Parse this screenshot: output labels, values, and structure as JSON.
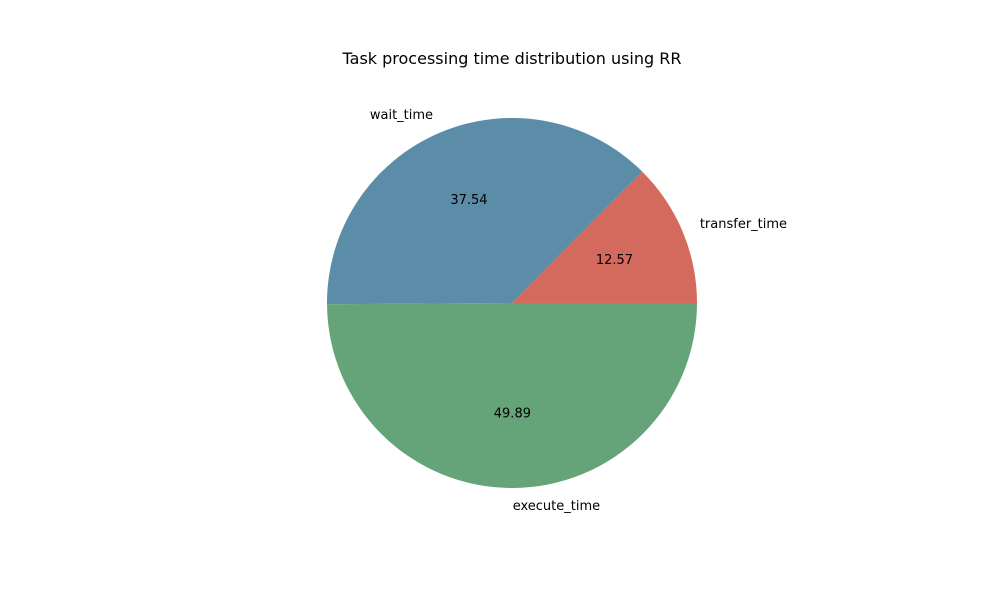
{
  "chart_data": {
    "type": "pie",
    "title": "Task processing time distribution using RR",
    "slices": [
      {
        "label": "transfer_time",
        "value": 12.57,
        "value_label": "12.57",
        "color": "#d4695e"
      },
      {
        "label": "wait_time",
        "value": 37.54,
        "value_label": "37.54",
        "color": "#5b8ca8"
      },
      {
        "label": "execute_time",
        "value": 49.89,
        "value_label": "49.89",
        "color": "#64a478"
      }
    ],
    "start_angle_deg": 0,
    "direction": "counterclockwise"
  }
}
